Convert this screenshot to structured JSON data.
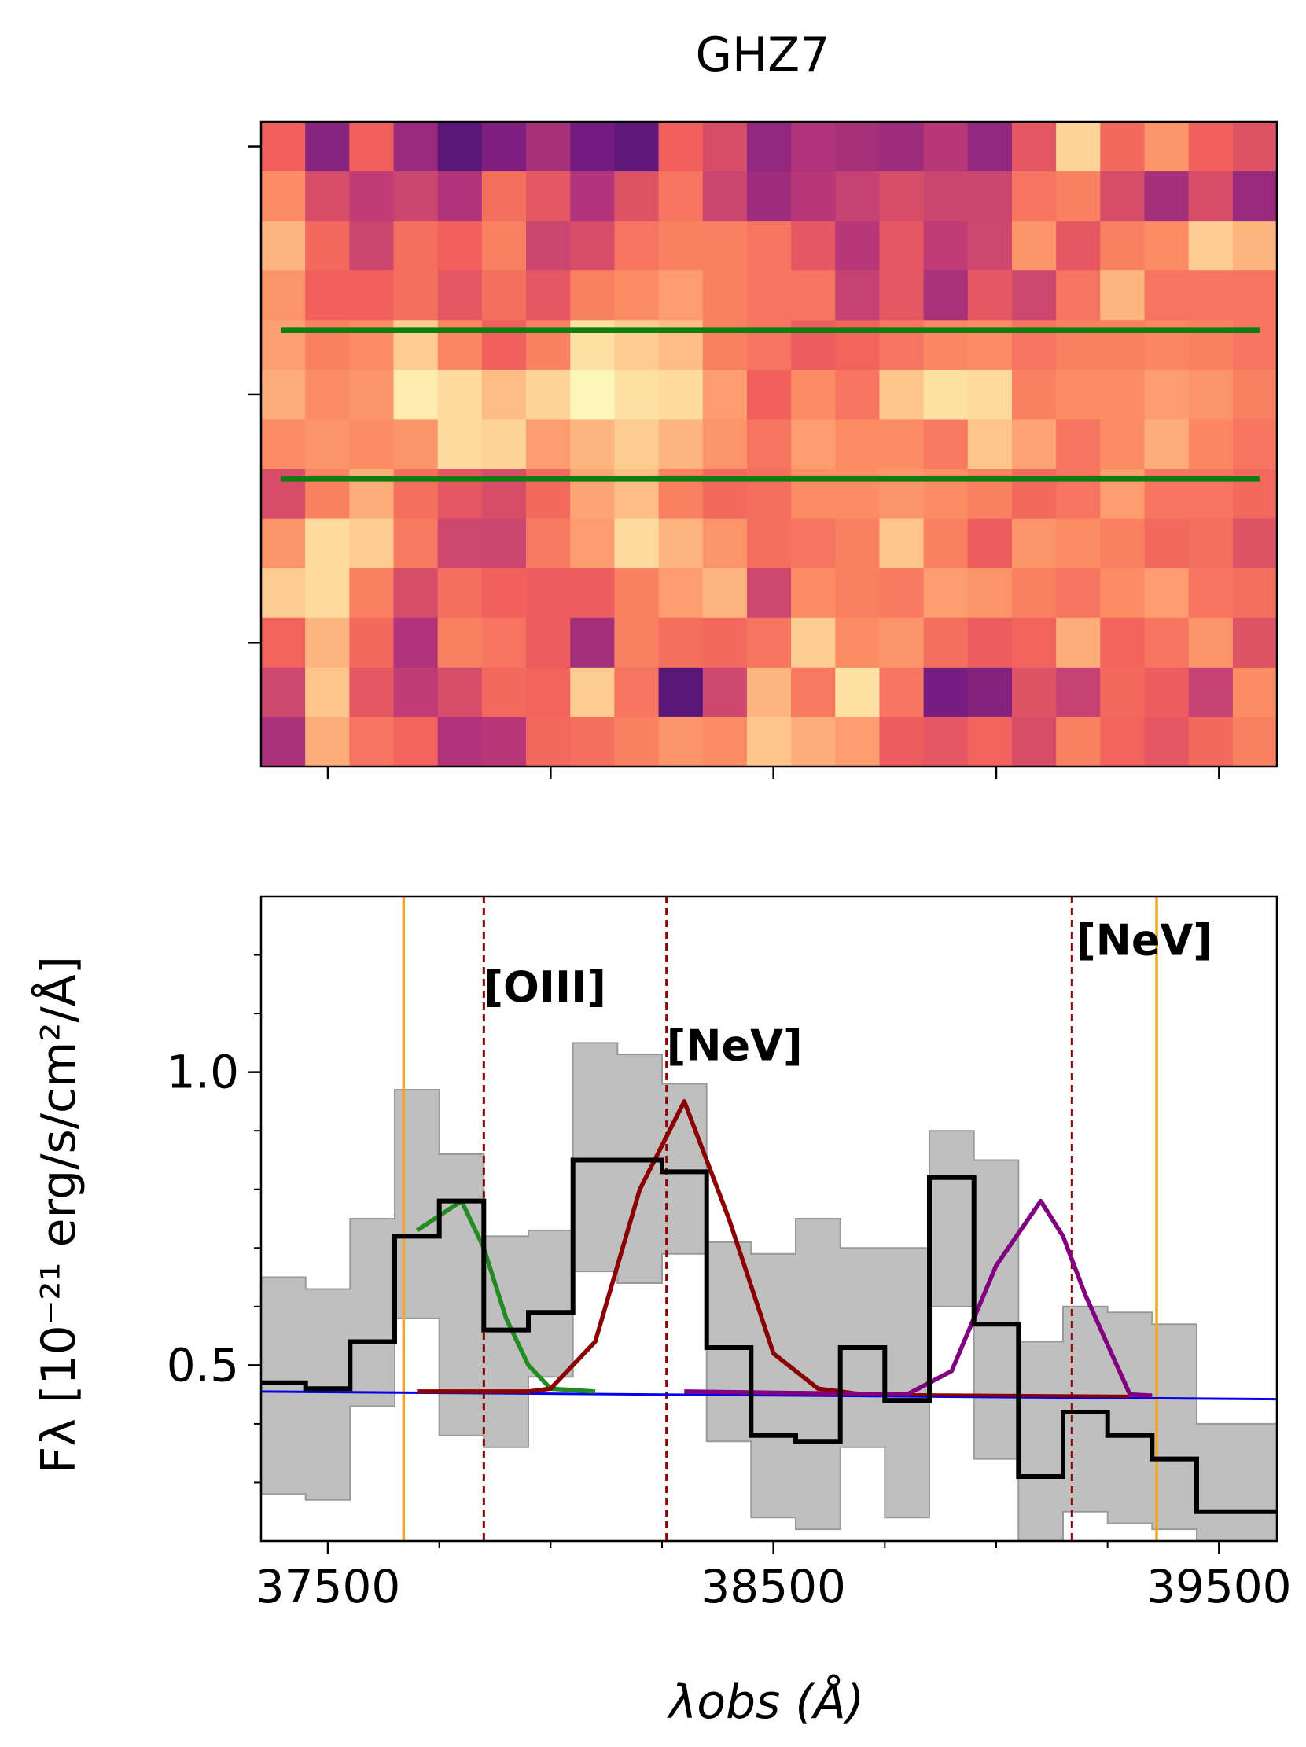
{
  "chart_data": [
    {
      "type": "heatmap",
      "title": "GHZ7",
      "rows": 13,
      "cols": 23,
      "colormap": "magma",
      "values": [
        [
          0.55,
          0.25,
          0.55,
          0.3,
          0.1,
          0.22,
          0.35,
          0.18,
          0.12,
          0.55,
          0.48,
          0.28,
          0.38,
          0.35,
          0.32,
          0.4,
          0.28,
          0.52,
          0.88,
          0.58,
          0.72,
          0.55,
          0.5
        ],
        [
          0.7,
          0.48,
          0.42,
          0.45,
          0.38,
          0.6,
          0.52,
          0.38,
          0.5,
          0.62,
          0.45,
          0.32,
          0.4,
          0.44,
          0.48,
          0.45,
          0.45,
          0.62,
          0.66,
          0.48,
          0.34,
          0.48,
          0.3
        ],
        [
          0.8,
          0.58,
          0.45,
          0.6,
          0.55,
          0.66,
          0.45,
          0.48,
          0.62,
          0.66,
          0.66,
          0.62,
          0.52,
          0.4,
          0.52,
          0.42,
          0.46,
          0.72,
          0.52,
          0.66,
          0.7,
          0.86,
          0.8
        ],
        [
          0.72,
          0.55,
          0.55,
          0.6,
          0.52,
          0.6,
          0.52,
          0.66,
          0.7,
          0.74,
          0.66,
          0.62,
          0.62,
          0.44,
          0.52,
          0.36,
          0.52,
          0.46,
          0.62,
          0.8,
          0.62,
          0.62,
          0.62
        ],
        [
          0.75,
          0.66,
          0.7,
          0.86,
          0.68,
          0.55,
          0.66,
          0.92,
          0.86,
          0.82,
          0.66,
          0.62,
          0.54,
          0.56,
          0.62,
          0.68,
          0.7,
          0.62,
          0.66,
          0.66,
          0.68,
          0.66,
          0.62
        ],
        [
          0.78,
          0.7,
          0.72,
          0.95,
          0.9,
          0.82,
          0.88,
          0.98,
          0.92,
          0.9,
          0.74,
          0.55,
          0.7,
          0.62,
          0.84,
          0.92,
          0.9,
          0.66,
          0.7,
          0.7,
          0.74,
          0.72,
          0.66
        ],
        [
          0.7,
          0.72,
          0.7,
          0.72,
          0.9,
          0.88,
          0.74,
          0.8,
          0.86,
          0.8,
          0.72,
          0.62,
          0.74,
          0.7,
          0.7,
          0.64,
          0.84,
          0.76,
          0.62,
          0.7,
          0.78,
          0.68,
          0.62
        ],
        [
          0.48,
          0.66,
          0.78,
          0.6,
          0.52,
          0.48,
          0.58,
          0.76,
          0.82,
          0.66,
          0.58,
          0.6,
          0.7,
          0.7,
          0.72,
          0.7,
          0.66,
          0.58,
          0.62,
          0.74,
          0.62,
          0.62,
          0.58
        ],
        [
          0.72,
          0.9,
          0.86,
          0.64,
          0.46,
          0.45,
          0.64,
          0.74,
          0.9,
          0.8,
          0.72,
          0.6,
          0.62,
          0.66,
          0.84,
          0.66,
          0.54,
          0.72,
          0.7,
          0.66,
          0.58,
          0.6,
          0.5
        ],
        [
          0.86,
          0.9,
          0.66,
          0.48,
          0.6,
          0.55,
          0.54,
          0.54,
          0.66,
          0.74,
          0.8,
          0.46,
          0.7,
          0.66,
          0.64,
          0.74,
          0.72,
          0.66,
          0.62,
          0.7,
          0.74,
          0.62,
          0.6
        ],
        [
          0.56,
          0.8,
          0.58,
          0.38,
          0.66,
          0.62,
          0.54,
          0.34,
          0.66,
          0.6,
          0.58,
          0.62,
          0.86,
          0.7,
          0.72,
          0.6,
          0.54,
          0.56,
          0.78,
          0.56,
          0.62,
          0.72,
          0.5
        ],
        [
          0.46,
          0.84,
          0.52,
          0.42,
          0.48,
          0.58,
          0.56,
          0.86,
          0.62,
          0.1,
          0.46,
          0.8,
          0.64,
          0.92,
          0.62,
          0.2,
          0.24,
          0.5,
          0.44,
          0.58,
          0.54,
          0.44,
          0.7
        ],
        [
          0.36,
          0.78,
          0.62,
          0.56,
          0.38,
          0.4,
          0.58,
          0.6,
          0.66,
          0.72,
          0.7,
          0.84,
          0.78,
          0.74,
          0.54,
          0.52,
          0.56,
          0.48,
          0.66,
          0.56,
          0.52,
          0.58,
          0.66
        ]
      ],
      "extraction_rows": [
        4.2,
        7.2
      ],
      "extraction_color": "#0f7d0f"
    },
    {
      "type": "line",
      "xlabel": "λobs (Å)",
      "ylabel": "Fλ [10⁻²¹ erg/s/cm²/Å]",
      "xlim": [
        37350,
        39630
      ],
      "ylim": [
        0.2,
        1.3
      ],
      "xticks": [
        37500,
        38500,
        39500
      ],
      "yticks": [
        0.5,
        1.0
      ],
      "xticks_minor": [
        37750,
        38000,
        38250,
        38750,
        39000,
        39250
      ],
      "yticks_minor": [
        0.3,
        0.4,
        0.6,
        0.7,
        0.8,
        0.9,
        1.1,
        1.2
      ],
      "bin_edges": [
        37350,
        37450,
        37550,
        37650,
        37750,
        37850,
        37950,
        38050,
        38150,
        38250,
        38350,
        38450,
        38550,
        38650,
        38750,
        38850,
        38950,
        39050,
        39150,
        39250,
        39350,
        39450,
        39550,
        39650
      ],
      "flux": [
        0.47,
        0.46,
        0.54,
        0.72,
        0.78,
        0.56,
        0.59,
        0.85,
        0.85,
        0.83,
        0.53,
        0.38,
        0.37,
        0.53,
        0.44,
        0.82,
        0.57,
        0.31,
        0.42,
        0.38,
        0.34,
        0.25,
        0.25
      ],
      "flux_upper": [
        0.65,
        0.63,
        0.75,
        0.97,
        0.86,
        0.72,
        0.73,
        1.05,
        1.03,
        0.98,
        0.71,
        0.69,
        0.75,
        0.7,
        0.7,
        0.9,
        0.85,
        0.54,
        0.6,
        0.59,
        0.57,
        0.4,
        0.4
      ],
      "flux_lower": [
        0.28,
        0.27,
        0.43,
        0.58,
        0.38,
        0.36,
        0.48,
        0.66,
        0.64,
        0.69,
        0.37,
        0.24,
        0.22,
        0.36,
        0.24,
        0.6,
        0.34,
        0.2,
        0.25,
        0.23,
        0.22,
        0.2,
        0.2
      ],
      "continuum": {
        "x": [
          37350,
          39630
        ],
        "y": [
          0.455,
          0.442
        ],
        "color": "#0000ee"
      },
      "fit_oiii": {
        "x": [
          37700,
          37800,
          37850,
          37900,
          37950,
          38000,
          38100
        ],
        "y": [
          0.73,
          0.78,
          0.7,
          0.58,
          0.5,
          0.46,
          0.455
        ],
        "color": "#228b22"
      },
      "fit_nev_1": {
        "x": [
          37700,
          37950,
          38000,
          38100,
          38200,
          38300,
          38400,
          38500,
          38600,
          38700
        ],
        "y": [
          0.455,
          0.455,
          0.46,
          0.54,
          0.8,
          0.95,
          0.75,
          0.52,
          0.46,
          0.45
        ],
        "color": "#8b0000"
      },
      "fit_nev_2": {
        "x": [
          38300,
          38800,
          38900,
          39000,
          39100,
          39150,
          39200,
          39300,
          39350
        ],
        "y": [
          0.455,
          0.45,
          0.49,
          0.67,
          0.78,
          0.72,
          0.62,
          0.45,
          0.448
        ],
        "color": "#800080"
      },
      "fit_nev_2_tail": {
        "x": [
          38700,
          39300
        ],
        "y": [
          0.45,
          0.447
        ],
        "color": "#8b0000"
      },
      "vlines_solid": [
        37670,
        39360
      ],
      "vlines_solid_color": "#f5a623",
      "vlines_dashed": [
        37850,
        38260,
        39170
      ],
      "vlines_dashed_color": "#8b0000",
      "labels": [
        {
          "text": "[OIII]",
          "x": 37850,
          "y": 1.12
        },
        {
          "text": "[NeV]",
          "x": 38260,
          "y": 1.02
        },
        {
          "text": "[NeV]",
          "x": 39180,
          "y": 1.2
        }
      ]
    }
  ]
}
